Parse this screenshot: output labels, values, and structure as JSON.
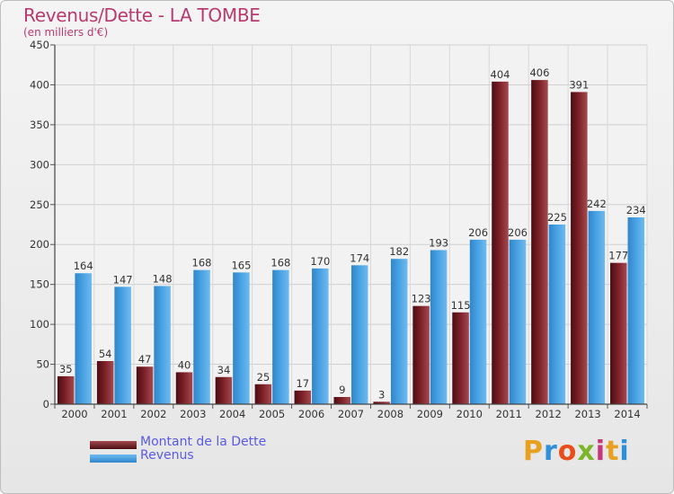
{
  "title": "Revenus/Dette - LA TOMBE",
  "subtitle": "(en milliers d'€)",
  "logo": {
    "text": "Proxiti",
    "letters": [
      "P",
      "r",
      "o",
      "x",
      "i",
      "t",
      "i"
    ],
    "colors": [
      "#e8a020",
      "#2f8fd8",
      "#e84e1b",
      "#7ab52a",
      "#c8367a",
      "#e8a020",
      "#2f8fd8"
    ]
  },
  "chart_data": {
    "type": "bar",
    "categories": [
      "2000",
      "2001",
      "2002",
      "2003",
      "2004",
      "2005",
      "2006",
      "2007",
      "2008",
      "2009",
      "2010",
      "2011",
      "2012",
      "2013",
      "2014"
    ],
    "series": [
      {
        "name": "Montant de la Dette",
        "color": "#7b1f26",
        "values": [
          35,
          54,
          47,
          40,
          34,
          25,
          17,
          9,
          3,
          123,
          115,
          404,
          406,
          391,
          177
        ]
      },
      {
        "name": "Revenus",
        "color": "#4aa3e3",
        "values": [
          164,
          147,
          148,
          168,
          165,
          168,
          170,
          174,
          182,
          193,
          206,
          206,
          225,
          242,
          234
        ]
      }
    ],
    "ylim": [
      0,
      450
    ],
    "yticks": [
      0,
      50,
      100,
      150,
      200,
      250,
      300,
      350,
      400,
      450
    ],
    "grid": true,
    "legend": "bottom-left"
  }
}
